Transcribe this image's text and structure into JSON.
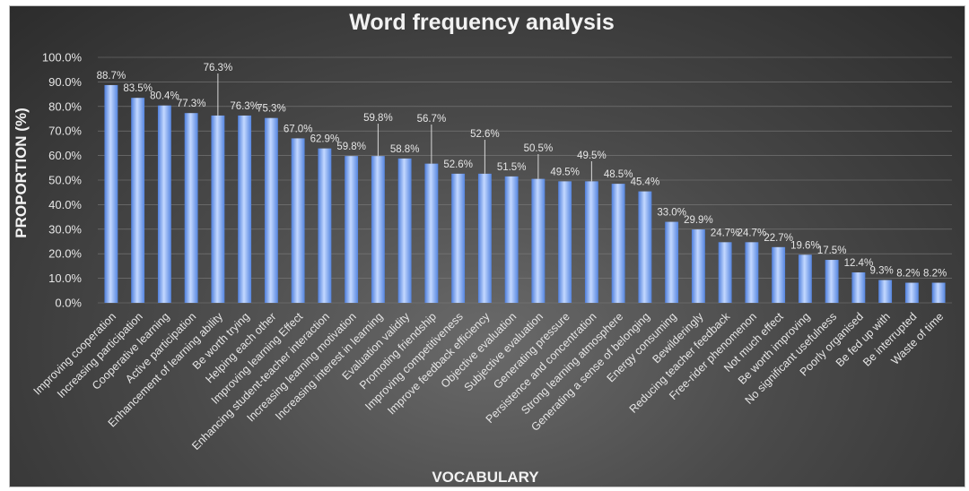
{
  "chart_data": {
    "type": "bar",
    "title": "Word frequency analysis",
    "xlabel": "VOCABULARY",
    "ylabel": "PROPORTION (%)",
    "ylim": [
      0,
      100
    ],
    "yticks": [
      "0.0%",
      "10.0%",
      "20.0%",
      "30.0%",
      "40.0%",
      "50.0%",
      "60.0%",
      "70.0%",
      "80.0%",
      "90.0%",
      "100.0%"
    ],
    "categories": [
      "Improving cooperation",
      "Increasing participation",
      "Cooperative learning",
      "Active participation",
      "Enhancement of learning ability",
      "Be worth trying",
      "Helping each other",
      "Improving learning Effect",
      "Enhancing student-teacher interaction",
      "Increasing learning motivation",
      "Increasing interest in learning",
      "Evaluation validity",
      "Promoting friendship",
      "Improving competitiveness",
      "Improve feedback efficiency",
      "Objective evaluation",
      "Subjective evaluation",
      "Generating pressure",
      "Persistence and concentration",
      "Strong learning atmosphere",
      "Generating a sense of belonging",
      "Energy consuming",
      "Bewilderingly",
      "Reducing teacher feedback",
      "Free-rider phenomenon",
      "Not much effect",
      "Be worth improving",
      "No significant usefulness",
      "Poorly organised",
      "Be fed up with",
      "Be interrupted",
      "Waste of time"
    ],
    "values": [
      88.7,
      83.5,
      80.4,
      77.3,
      76.3,
      76.3,
      75.3,
      67.0,
      62.9,
      59.8,
      59.8,
      58.8,
      56.7,
      52.6,
      52.6,
      51.5,
      50.5,
      49.5,
      49.5,
      48.5,
      45.4,
      33.0,
      29.9,
      24.7,
      24.7,
      22.7,
      19.6,
      17.5,
      12.4,
      9.3,
      8.2,
      8.2
    ],
    "value_labels": [
      "88.7%",
      "83.5%",
      "80.4%",
      "77.3%",
      "76.3%",
      "76.3%",
      "75.3%",
      "67.0%",
      "62.9%",
      "59.8%",
      "59.8%",
      "58.8%",
      "56.7%",
      "52.6%",
      "52.6%",
      "51.5%",
      "50.5%",
      "49.5%",
      "49.5%",
      "48.5%",
      "45.4%",
      "33.0%",
      "29.9%",
      "24.7%",
      "24.7%",
      "22.7%",
      "19.6%",
      "17.5%",
      "12.4%",
      "9.3%",
      "8.2%",
      "8.2%"
    ],
    "grid": true,
    "bar_color": "#8fb4f5"
  }
}
